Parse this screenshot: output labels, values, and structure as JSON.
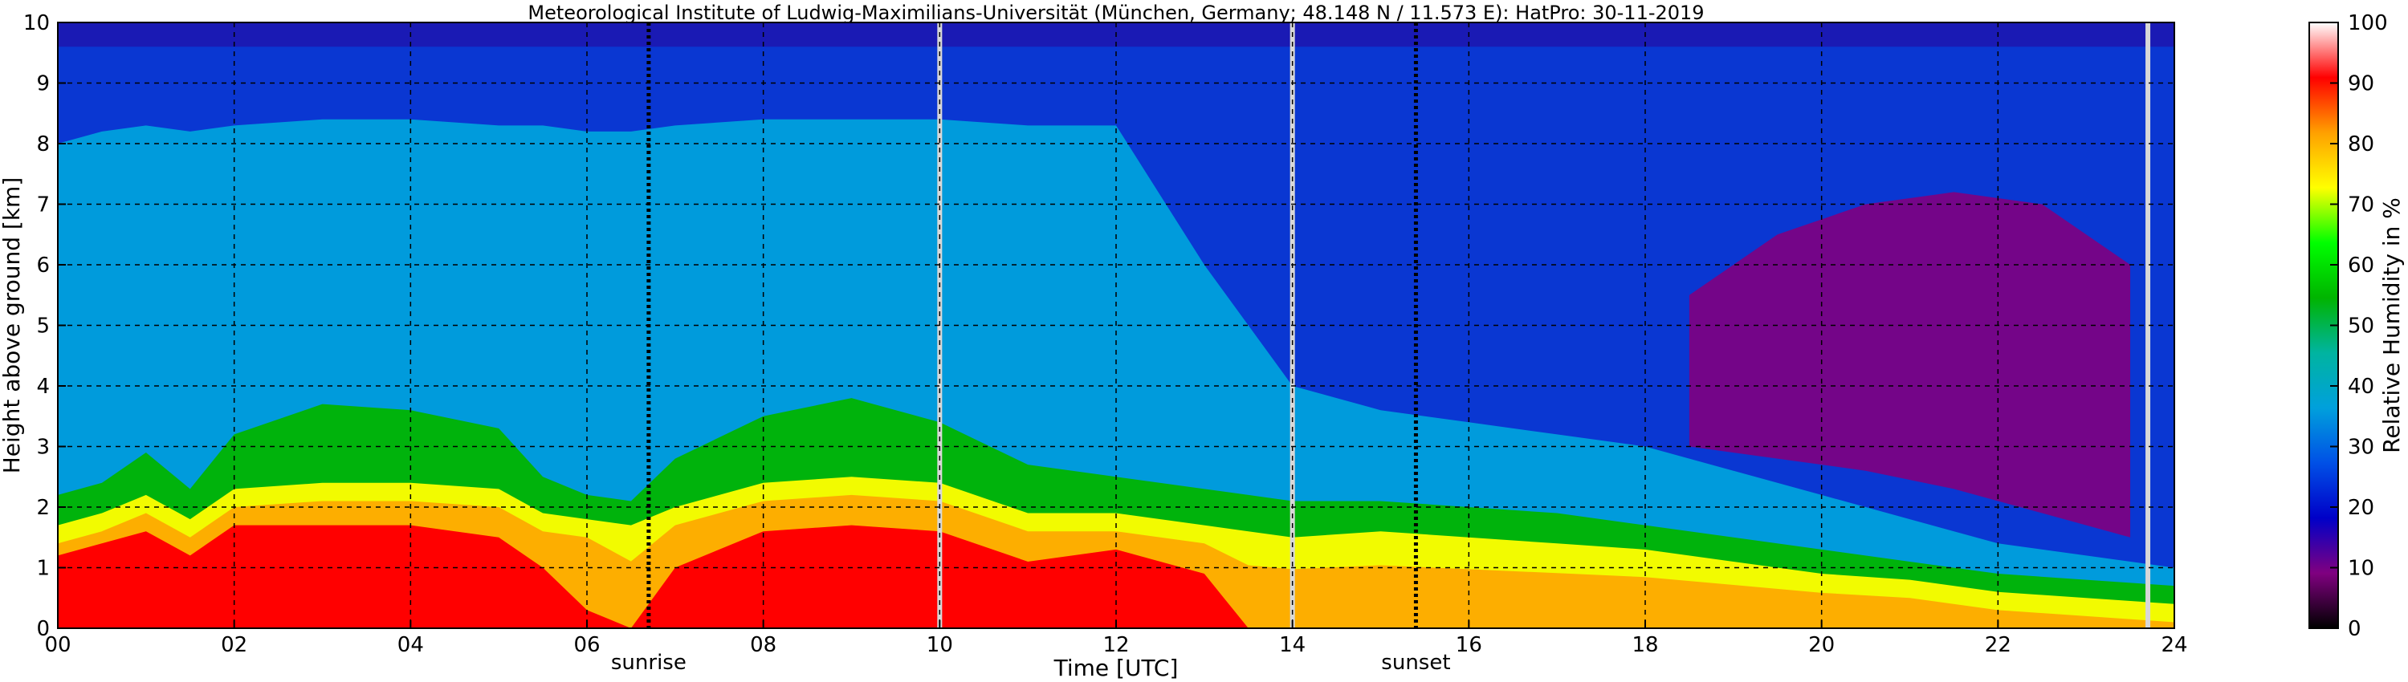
{
  "chart_data": {
    "type": "heatmap",
    "title": "Meteorological Institute of Ludwig-Maximilians-Universität (München, Germany; 48.148 N / 11.573 E):    HatPro: 30-11-2019",
    "xlabel": "Time [UTC]",
    "ylabel": "Height above ground [km]",
    "colorbar_label": "Relative Humidity in %",
    "xlim": [
      0,
      24
    ],
    "ylim": [
      0,
      10
    ],
    "clim": [
      0,
      100
    ],
    "x_ticks": [
      "00",
      "02",
      "04",
      "06",
      "08",
      "10",
      "12",
      "14",
      "16",
      "18",
      "20",
      "22",
      "24"
    ],
    "y_ticks": [
      "0",
      "1",
      "2",
      "3",
      "4",
      "5",
      "6",
      "7",
      "8",
      "9",
      "10"
    ],
    "colorbar_ticks": [
      "0",
      "10",
      "20",
      "30",
      "40",
      "50",
      "60",
      "70",
      "80",
      "90",
      "100"
    ],
    "grid": true,
    "events": [
      {
        "label": "sunrise",
        "time": 6.7
      },
      {
        "label": "sunset",
        "time": 15.4
      }
    ],
    "data_gaps": [
      10.0,
      14.0,
      23.7
    ],
    "colormap": [
      "#000000",
      "#800080",
      "#0000c8",
      "#0050e6",
      "#00a0dc",
      "#00b4a0",
      "#00b400",
      "#00ff00",
      "#ffff00",
      "#ffa000",
      "#ff0000",
      "#ffffff"
    ],
    "x_times": [
      0,
      0.5,
      1,
      1.5,
      2,
      3,
      4,
      5,
      5.5,
      6,
      6.5,
      7,
      8,
      9,
      10,
      11,
      12,
      13,
      13.5,
      14,
      15,
      16,
      17,
      18,
      19,
      20,
      21,
      22,
      23,
      24
    ],
    "layer_tops_km": {
      "rh_90": [
        1.2,
        1.4,
        1.6,
        1.2,
        1.7,
        1.7,
        1.7,
        1.5,
        1.0,
        0.3,
        0.0,
        1.0,
        1.6,
        1.7,
        1.6,
        1.1,
        1.3,
        0.9,
        0.0,
        0.0,
        0.0,
        0.0,
        0.0,
        0.0,
        0.0,
        0.0,
        0.0,
        0.0,
        0.0,
        0.0
      ],
      "rh_70": [
        1.7,
        1.9,
        2.2,
        1.8,
        2.3,
        2.4,
        2.4,
        2.3,
        1.9,
        1.8,
        1.7,
        2.0,
        2.4,
        2.5,
        2.4,
        1.9,
        1.9,
        1.7,
        1.6,
        1.5,
        1.6,
        1.5,
        1.4,
        1.3,
        1.1,
        0.9,
        0.8,
        0.6,
        0.5,
        0.4
      ],
      "rh_50": [
        2.2,
        2.4,
        2.9,
        2.3,
        3.2,
        3.7,
        3.6,
        3.3,
        2.5,
        2.2,
        2.1,
        2.8,
        3.5,
        3.8,
        3.4,
        2.7,
        2.5,
        2.3,
        2.2,
        2.1,
        2.1,
        2.0,
        1.9,
        1.7,
        1.5,
        1.3,
        1.1,
        0.9,
        0.8,
        0.7
      ],
      "rh_35": [
        8.0,
        8.2,
        8.3,
        8.2,
        8.3,
        8.4,
        8.4,
        8.3,
        8.3,
        8.2,
        8.2,
        8.3,
        8.4,
        8.4,
        8.4,
        8.3,
        8.3,
        6.0,
        5.0,
        4.0,
        3.6,
        3.4,
        3.2,
        3.0,
        2.6,
        2.2,
        1.8,
        1.4,
        1.2,
        1.0
      ]
    },
    "dry_layer_km": {
      "start_time": 18.5,
      "bottom": [
        3.0,
        2.8,
        2.6,
        2.3,
        1.9,
        1.5
      ],
      "top": [
        5.5,
        6.5,
        7.0,
        7.2,
        7.0,
        6.0
      ],
      "times": [
        18.5,
        19.5,
        20.5,
        21.5,
        22.5,
        23.5
      ]
    }
  }
}
